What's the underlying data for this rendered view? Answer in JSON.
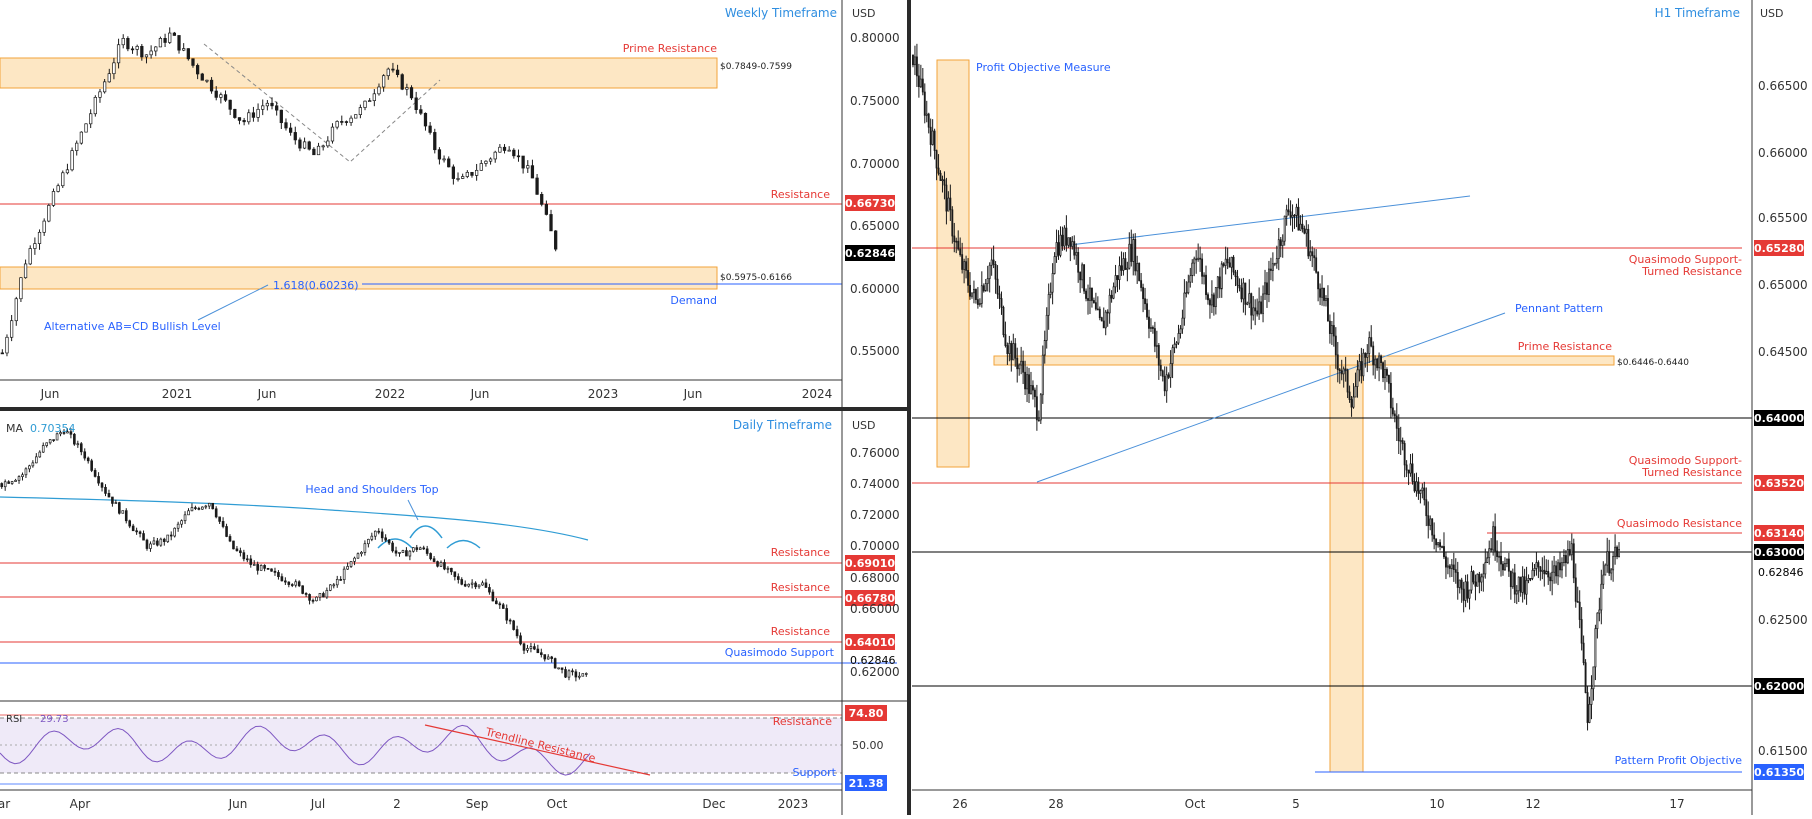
{
  "weekly": {
    "title": "Weekly Timeframe",
    "currency": "USD",
    "price_ticks": [
      "0.80000",
      "0.75000",
      "0.70000",
      "0.65000",
      "0.60000",
      "0.55000"
    ],
    "time_ticks": [
      "Jun",
      "2021",
      "Jun",
      "2022",
      "Jun",
      "2023",
      "Jun",
      "2024"
    ],
    "annotations": {
      "prime_resistance": "Prime Resistance",
      "prime_zone_label": "$0.7849-0.7599",
      "resistance": "Resistance",
      "demand_zone_label": "$0.5975-0.6166",
      "fib": "1.618(0.60236)",
      "demand": "Demand",
      "abcd": "Alternative AB=CD Bullish Level"
    },
    "badges": {
      "resistance": "0.66730",
      "price": "0.62846"
    }
  },
  "daily": {
    "title": "Daily Timeframe",
    "currency": "USD",
    "ma_label": "MA",
    "ma_value": "0.70354",
    "price_ticks": [
      "0.76000",
      "0.74000",
      "0.72000",
      "0.70000",
      "0.68000",
      "0.66000",
      "0.62000"
    ],
    "time_ticks": [
      "ar",
      "Apr",
      "Jun",
      "Jul",
      "2",
      "Sep",
      "Oct",
      "Dec",
      "2023"
    ],
    "annotations": {
      "head_shoulders": "Head and Shoulders Top",
      "resistance_1": "Resistance",
      "resistance_2": "Resistance",
      "resistance_3": "Resistance",
      "quasimodo_support": "Quasimodo Support"
    },
    "badges": {
      "r1": "0.69010",
      "r2": "0.66780",
      "r3": "0.64010",
      "price": "0.62846"
    },
    "rsi": {
      "label": "RSI",
      "value": "29.73",
      "tick": "50.00",
      "resistance": "Resistance",
      "support": "Support",
      "trendline": "Trendline Resistance",
      "upper_badge": "74.80",
      "lower_badge": "21.38"
    }
  },
  "h1": {
    "title": "H1 Timeframe",
    "currency": "USD",
    "price_ticks": [
      "0.66500",
      "0.66000",
      "0.65500",
      "0.65000",
      "0.64500",
      "0.62500",
      "0.61500"
    ],
    "time_ticks": [
      "26",
      "28",
      "Oct",
      "5",
      "10",
      "12",
      "17"
    ],
    "annotations": {
      "profit_objective_measure": "Profit Objective Measure",
      "qm_st_res_1a": "Quasimodo Support-",
      "qm_st_res_1b": "Turned Resistance",
      "pennant": "Pennant Pattern",
      "prime_resistance": "Prime Resistance",
      "prime_zone_label": "$0.6446-0.6440",
      "qm_st_res_2a": "Quasimodo Support-",
      "qm_st_res_2b": "Turned Resistance",
      "qm_res": "Quasimodo Resistance",
      "pattern_profit": "Pattern Profit Objective"
    },
    "badges": {
      "b65280": "0.65280",
      "b64000": "0.64000",
      "b63520": "0.63520",
      "b63140": "0.63140",
      "b63000": "0.63000",
      "b62846": "0.62846",
      "b62000": "0.62000",
      "b61350": "0.61350"
    }
  },
  "colors": {
    "red": "#e53935",
    "blue": "#2962ff",
    "light_blue": "#4a90d9",
    "zone_fill": "#fde7c4",
    "zone_border": "#f2a33a",
    "black_badge": "#000000",
    "candle": "#1a1a1a"
  },
  "chart_data": [
    {
      "type": "candlestick",
      "title": "Weekly Timeframe",
      "x_labels": [
        "Jun",
        "2021",
        "Jun",
        "2022",
        "Jun",
        "2023",
        "Jun",
        "2024"
      ],
      "ylim": [
        0.53,
        0.81
      ],
      "levels": {
        "prime_resistance_zone": [
          0.7599,
          0.7849
        ],
        "resistance": 0.6673,
        "demand_zone": [
          0.5975,
          0.6166
        ],
        "fib_1618": 0.60236,
        "last_price": 0.62846
      },
      "close_path": [
        0.55,
        0.62,
        0.66,
        0.7,
        0.74,
        0.78,
        0.77,
        0.785,
        0.76,
        0.74,
        0.72,
        0.735,
        0.71,
        0.695,
        0.72,
        0.73,
        0.76,
        0.74,
        0.7,
        0.675,
        0.69,
        0.705,
        0.68,
        0.62846
      ]
    },
    {
      "type": "candlestick",
      "title": "Daily Timeframe",
      "x_labels": [
        "ar",
        "Apr",
        "Jun",
        "Jul",
        "2",
        "Sep",
        "Oct",
        "Dec",
        "2023"
      ],
      "ylim": [
        0.615,
        0.775
      ],
      "levels": {
        "resistance_1": 0.6901,
        "resistance_2": 0.6678,
        "resistance_3": 0.6401,
        "last_price": 0.62846,
        "ma": 0.70354
      },
      "close_path": [
        0.735,
        0.74,
        0.755,
        0.765,
        0.75,
        0.73,
        0.715,
        0.7,
        0.705,
        0.72,
        0.725,
        0.7,
        0.69,
        0.685,
        0.68,
        0.67,
        0.68,
        0.695,
        0.71,
        0.695,
        0.7,
        0.69,
        0.68,
        0.68,
        0.665,
        0.645,
        0.64,
        0.63,
        0.62846
      ],
      "rsi": {
        "value": 29.73,
        "upper": 74.8,
        "lower": 21.38
      }
    },
    {
      "type": "candlestick",
      "title": "H1 Timeframe",
      "x_labels": [
        "26",
        "28",
        "Oct",
        "5",
        "10",
        "12",
        "17"
      ],
      "ylim": [
        0.6115,
        0.669
      ],
      "levels": {
        "qm_support_turned_res_1": 0.6528,
        "prime_resistance_zone": [
          0.644,
          0.6446
        ],
        "level_64000": 0.64,
        "qm_support_turned_res_2": 0.6352,
        "qm_resistance": 0.6314,
        "level_63000": 0.63,
        "level_62000": 0.62,
        "pattern_profit_objective": 0.6135,
        "last_price": 0.62846
      },
      "close_path": [
        0.665,
        0.66,
        0.655,
        0.65,
        0.647,
        0.65,
        0.644,
        0.642,
        0.639,
        0.651,
        0.652,
        0.648,
        0.645,
        0.649,
        0.651,
        0.646,
        0.641,
        0.645,
        0.651,
        0.647,
        0.65,
        0.648,
        0.646,
        0.65,
        0.654,
        0.652,
        0.648,
        0.643,
        0.64,
        0.644,
        0.642,
        0.637,
        0.634,
        0.631,
        0.628,
        0.626,
        0.627,
        0.63,
        0.627,
        0.626,
        0.628,
        0.627,
        0.629,
        0.617,
        0.628,
        0.62846
      ]
    }
  ]
}
